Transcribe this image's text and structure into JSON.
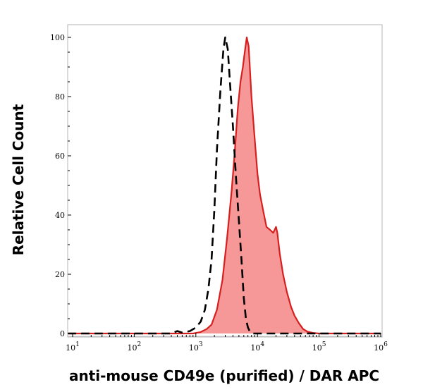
{
  "chart_data": {
    "type": "area",
    "title": "",
    "xlabel": "anti-mouse CD49e (purified) / DAR APC",
    "ylabel": "Relative Cell Count",
    "xscale": "log",
    "xlim": [
      10,
      1000000
    ],
    "ylim": [
      0,
      100
    ],
    "grid": false,
    "legend": "none",
    "y_ticks": [
      {
        "value": 0,
        "label": "0"
      },
      {
        "value": 20,
        "label": "20"
      },
      {
        "value": 40,
        "label": "40"
      },
      {
        "value": 60,
        "label": "60"
      },
      {
        "value": 80,
        "label": "80"
      },
      {
        "value": 100,
        "label": "100"
      }
    ],
    "x_ticks": [
      {
        "value": 10,
        "base": "10",
        "exp": "1"
      },
      {
        "value": 100,
        "base": "10",
        "exp": "2"
      },
      {
        "value": 1000,
        "base": "10",
        "exp": "3"
      },
      {
        "value": 10000,
        "base": "10",
        "exp": "4"
      },
      {
        "value": 100000,
        "base": "10",
        "exp": "5"
      },
      {
        "value": 1000000,
        "base": "10",
        "exp": "6"
      }
    ],
    "series": [
      {
        "style": "dashed-outline",
        "color": "#000000",
        "points": [
          [
            8,
            0
          ],
          [
            200,
            0
          ],
          [
            400,
            0
          ],
          [
            500,
            0.8
          ],
          [
            600,
            0.3
          ],
          [
            800,
            0.8
          ],
          [
            1000,
            2
          ],
          [
            1200,
            4
          ],
          [
            1400,
            8
          ],
          [
            1600,
            15
          ],
          [
            1800,
            25
          ],
          [
            2000,
            42
          ],
          [
            2200,
            62
          ],
          [
            2500,
            82
          ],
          [
            2800,
            96
          ],
          [
            3000,
            100
          ],
          [
            3300,
            96
          ],
          [
            3600,
            84
          ],
          [
            4000,
            70
          ],
          [
            4500,
            52
          ],
          [
            5000,
            38
          ],
          [
            5500,
            25
          ],
          [
            6000,
            12
          ],
          [
            6500,
            5
          ],
          [
            7000,
            2
          ],
          [
            7600,
            0.5
          ],
          [
            8500,
            0
          ],
          [
            100000,
            0
          ],
          [
            1000000,
            0
          ]
        ]
      },
      {
        "style": "filled",
        "color": "#d62020",
        "fill": "#f79898",
        "points": [
          [
            8,
            0
          ],
          [
            500,
            0
          ],
          [
            900,
            0
          ],
          [
            1200,
            0.5
          ],
          [
            1500,
            1.5
          ],
          [
            1800,
            3
          ],
          [
            2200,
            8
          ],
          [
            2700,
            18
          ],
          [
            3200,
            32
          ],
          [
            3800,
            48
          ],
          [
            4300,
            62
          ],
          [
            4800,
            76
          ],
          [
            5300,
            85
          ],
          [
            5800,
            90
          ],
          [
            6300,
            96
          ],
          [
            6700,
            100
          ],
          [
            7200,
            97
          ],
          [
            8000,
            80
          ],
          [
            9000,
            66
          ],
          [
            10000,
            54
          ],
          [
            11000,
            47
          ],
          [
            12500,
            41
          ],
          [
            14000,
            36
          ],
          [
            16000,
            35
          ],
          [
            18000,
            34
          ],
          [
            19000,
            35
          ],
          [
            20000,
            36
          ],
          [
            21000,
            34
          ],
          [
            23000,
            27
          ],
          [
            26000,
            20
          ],
          [
            30000,
            14
          ],
          [
            35000,
            9
          ],
          [
            40000,
            6
          ],
          [
            47000,
            3.5
          ],
          [
            55000,
            1.5
          ],
          [
            65000,
            0.6
          ],
          [
            80000,
            0.2
          ],
          [
            100000,
            0
          ],
          [
            1000000,
            0
          ]
        ]
      }
    ]
  }
}
